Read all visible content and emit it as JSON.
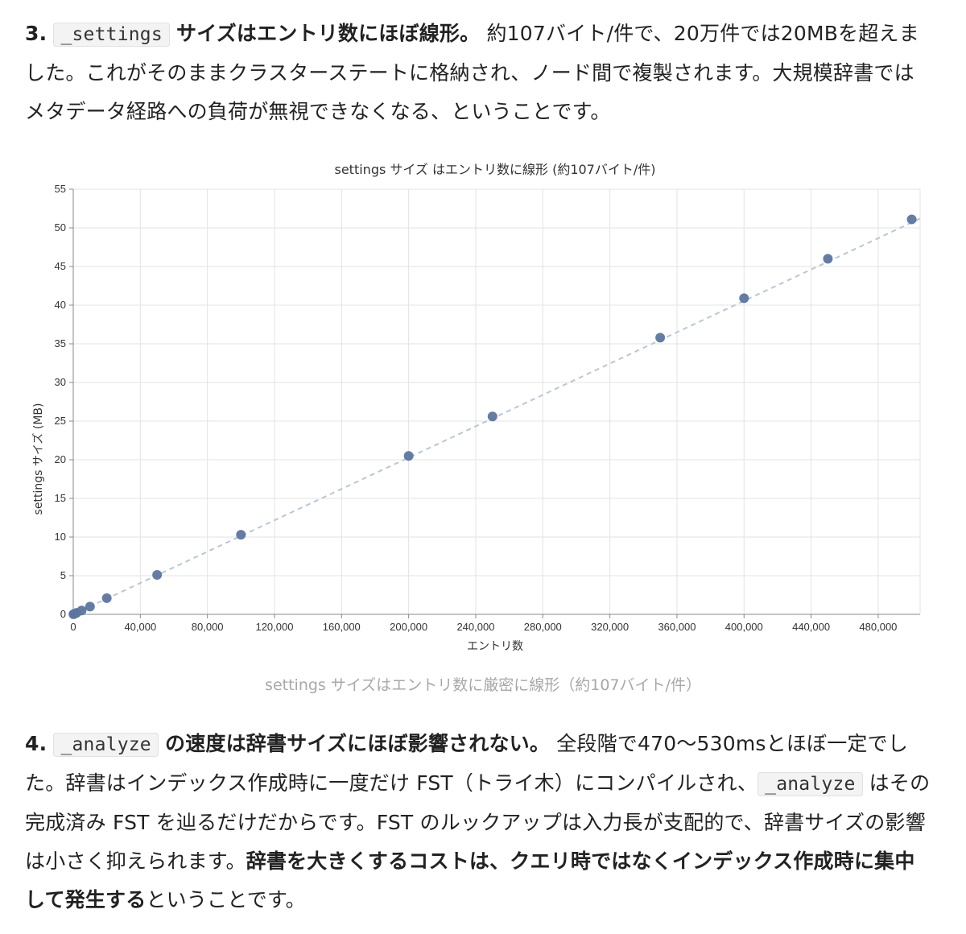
{
  "item3": {
    "num": "3.",
    "code": "_settings",
    "lead": "サイズはエントリ数にほぼ線形。",
    "text": " 約107バイト/件で、20万件では20MBを超えました。これがそのままクラスターステートに格納され、ノード間で複製されます。大規模辞書ではメタデータ経路への負荷が無視できなくなる、ということです。"
  },
  "chart_data": {
    "type": "scatter",
    "title": "settings サイズ はエントリ数に線形 (約107バイト/件)",
    "xlabel": "エントリ数",
    "ylabel": "settings サイズ (MB)",
    "xlim": [
      0,
      505000
    ],
    "ylim": [
      0,
      55
    ],
    "xticks": [
      0,
      40000,
      80000,
      120000,
      160000,
      200000,
      240000,
      280000,
      320000,
      360000,
      400000,
      440000,
      480000
    ],
    "xtick_labels": [
      "0",
      "40,000",
      "80,000",
      "120,000",
      "160,000",
      "200,000",
      "240,000",
      "280,000",
      "320,000",
      "360,000",
      "400,000",
      "440,000",
      "480,000"
    ],
    "yticks": [
      0,
      5,
      10,
      15,
      20,
      25,
      30,
      35,
      40,
      45,
      50,
      55
    ],
    "ytick_labels": [
      "0",
      "5",
      "10",
      "15",
      "20",
      "25",
      "30",
      "35",
      "40",
      "45",
      "50",
      "55"
    ],
    "grid": true,
    "point_color": "#5b76a0",
    "trend_color": "#b8c6d8",
    "trend_style": "dashed",
    "trend_line": {
      "x": [
        0,
        505000
      ],
      "y": [
        0,
        51.2
      ]
    },
    "points": [
      {
        "x": 100,
        "y": 0.01
      },
      {
        "x": 500,
        "y": 0.05
      },
      {
        "x": 1000,
        "y": 0.1
      },
      {
        "x": 2000,
        "y": 0.2
      },
      {
        "x": 5000,
        "y": 0.5
      },
      {
        "x": 10000,
        "y": 1.0
      },
      {
        "x": 20000,
        "y": 2.1
      },
      {
        "x": 50000,
        "y": 5.1
      },
      {
        "x": 100000,
        "y": 10.3
      },
      {
        "x": 200000,
        "y": 20.5
      },
      {
        "x": 250000,
        "y": 25.6
      },
      {
        "x": 350000,
        "y": 35.8
      },
      {
        "x": 400000,
        "y": 40.9
      },
      {
        "x": 450000,
        "y": 46.0
      },
      {
        "x": 500000,
        "y": 51.1
      }
    ]
  },
  "caption": "settings サイズはエントリ数に厳密に線形（約107バイト/件）",
  "item4": {
    "num": "4.",
    "code": "_analyze",
    "lead": "の速度は辞書サイズにほぼ影響されない。",
    "text1": " 全段階で470〜530msとほぼ一定でした。辞書はインデックス作成時に一度だけ FST（トライ木）にコンパイルされ、",
    "code2": "_analyze",
    "text2": " はその完成済み FST を辿るだけだからです。FST のルックアップは入力長が支配的で、辞書サイズの影響は小さく抑えられます。",
    "strong": "辞書を大きくするコストは、クエリ時ではなくインデックス作成時に集中して発生する",
    "text3": "ということです。"
  }
}
